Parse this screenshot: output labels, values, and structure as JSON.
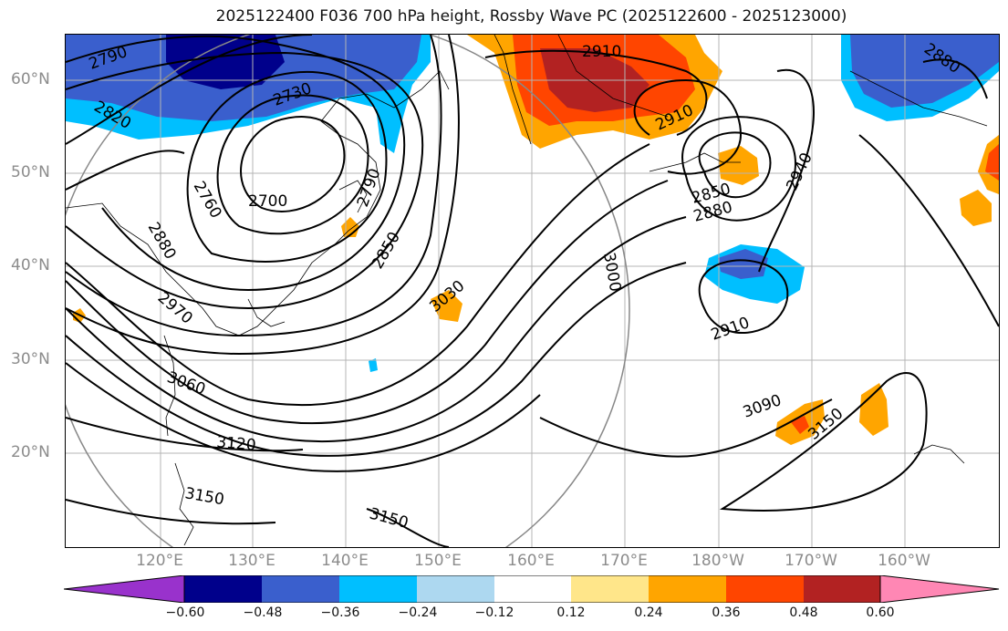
{
  "title": "2025122400 F036 700 hPa height, Rossby Wave PC (2025122600 - 2025123000)",
  "latitude_labels": [
    "60°N",
    "50°N",
    "40°N",
    "30°N",
    "20°N"
  ],
  "longitude_labels": [
    "120°E",
    "130°E",
    "140°E",
    "150°E",
    "160°E",
    "170°E",
    "180°W",
    "170°W",
    "160°W"
  ],
  "contour_labels": [
    "2790",
    "2820",
    "2730",
    "2760",
    "2700",
    "2790",
    "2880",
    "2970",
    "2850",
    "3060",
    "3030",
    "3000",
    "2910",
    "2910",
    "2850",
    "2880",
    "2940",
    "2880",
    "2910",
    "3090",
    "3150",
    "3120",
    "3150",
    "3150"
  ],
  "colorbar": {
    "ticks": [
      "−0.60",
      "−0.48",
      "−0.36",
      "−0.24",
      "−0.12",
      "0.12",
      "0.24",
      "0.36",
      "0.48",
      "0.60"
    ],
    "colors": [
      "#9932cc",
      "#00008b",
      "#3a5fcd",
      "#00bfff",
      "#add8f0",
      "#ffffff",
      "#ffe68a",
      "#ffa500",
      "#ff4500",
      "#b22222",
      "#ff87b4"
    ]
  },
  "colors": {
    "contour": "#000000",
    "gridline": "#b4b4b4",
    "axis_label": "#8c8c8c"
  }
}
